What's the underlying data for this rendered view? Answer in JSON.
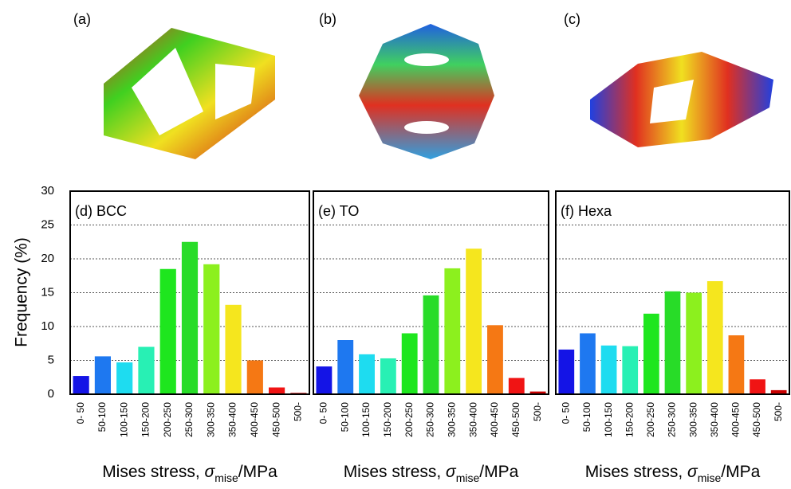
{
  "figure_labels": [
    "(a)",
    "(b)",
    "(c)"
  ],
  "chart_data": [
    {
      "type": "bar",
      "title": "(d) BCC",
      "y_label": "Frequency (%)",
      "x_label_parts": [
        "Mises stress, ",
        "σ",
        "mise",
        "/MPa"
      ],
      "categories": [
        "0- 50",
        "50-100",
        "100-150",
        "150-200",
        "200-250",
        "250-300",
        "300-350",
        "350-400",
        "400-450",
        "450-500",
        "500-"
      ],
      "values": [
        2.7,
        5.6,
        4.7,
        7.0,
        18.5,
        22.5,
        19.2,
        13.2,
        5.0,
        1.0,
        0.2
      ],
      "colors": [
        "#1414e6",
        "#1e78f0",
        "#1edcf0",
        "#28f0b4",
        "#1ee61e",
        "#28dc28",
        "#8cf01e",
        "#f5e61e",
        "#f57814",
        "#f01414",
        "#c80000"
      ],
      "ylim": [
        0,
        30
      ],
      "yticks": [
        0,
        5,
        10,
        15,
        20,
        25,
        30
      ],
      "grid": true
    },
    {
      "type": "bar",
      "title": "(e) TO",
      "x_label_parts": [
        "Mises stress, ",
        "σ",
        "mise",
        "/MPa"
      ],
      "categories": [
        "0- 50",
        "50-100",
        "100-150",
        "150-200",
        "200-250",
        "250-300",
        "300-350",
        "350-400",
        "400-450",
        "450-500",
        "500-"
      ],
      "values": [
        4.1,
        8.0,
        5.9,
        5.3,
        9.0,
        14.6,
        18.6,
        21.5,
        10.2,
        2.4,
        0.4
      ],
      "colors": [
        "#1414e6",
        "#1e78f0",
        "#1edcf0",
        "#28f0b4",
        "#1ee61e",
        "#28dc28",
        "#8cf01e",
        "#f5e61e",
        "#f57814",
        "#f01414",
        "#c80000"
      ],
      "ylim": [
        0,
        30
      ],
      "yticks": [
        0,
        5,
        10,
        15,
        20,
        25,
        30
      ],
      "grid": true
    },
    {
      "type": "bar",
      "title": "(f) Hexa",
      "x_label_parts": [
        "Mises stress, ",
        "σ",
        "mise",
        "/MPa"
      ],
      "categories": [
        "0- 50",
        "50-100",
        "100-150",
        "150-200",
        "200-250",
        "250-300",
        "300-350",
        "350-400",
        "400-450",
        "450-500",
        "500-"
      ],
      "values": [
        6.6,
        9.0,
        7.2,
        7.1,
        11.9,
        15.2,
        15.0,
        16.7,
        8.7,
        2.2,
        0.6
      ],
      "colors": [
        "#1414e6",
        "#1e78f0",
        "#1edcf0",
        "#28f0b4",
        "#1ee61e",
        "#28dc28",
        "#8cf01e",
        "#f5e61e",
        "#f57814",
        "#f01414",
        "#c80000"
      ],
      "ylim": [
        0,
        30
      ],
      "yticks": [
        0,
        5,
        10,
        15,
        20,
        25,
        30
      ],
      "grid": true
    }
  ]
}
